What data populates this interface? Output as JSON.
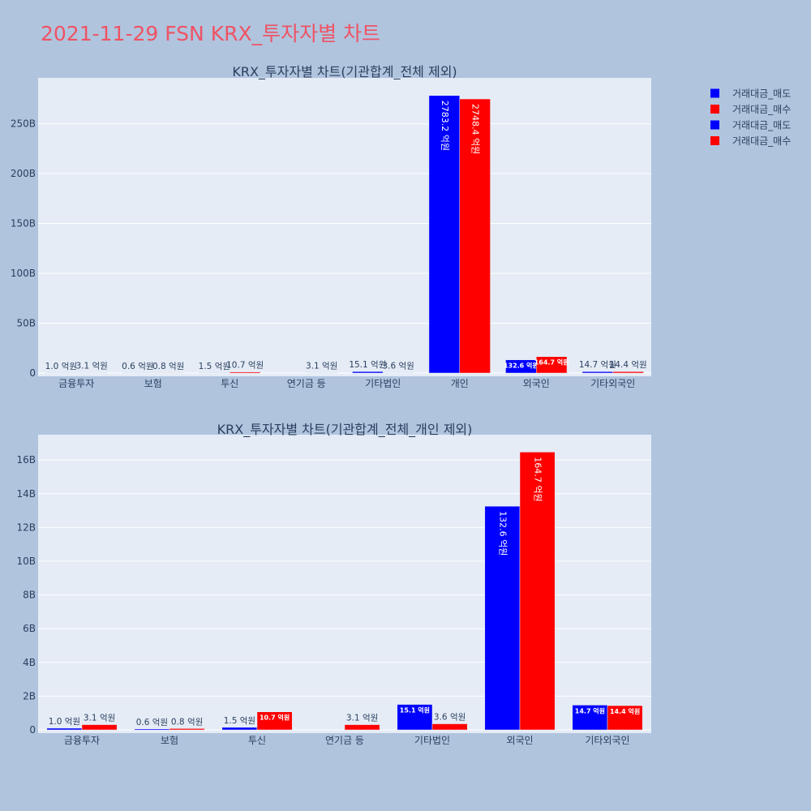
{
  "title": "2021-11-29 FSN KRX_투자자별 차트",
  "colors": {
    "sell": "#0000ff",
    "buy": "#ff0000",
    "plot_bg": "#e5ecf6",
    "page_bg": "#b0c4de",
    "title": "#ef5364"
  },
  "legend": [
    {
      "name": "거래대금_매도",
      "color": "#0000ff"
    },
    {
      "name": "거래대금_매수",
      "color": "#ff0000"
    },
    {
      "name": "거래대금_매도",
      "color": "#0000ff"
    },
    {
      "name": "거래대금_매수",
      "color": "#ff0000"
    }
  ],
  "chart_data": [
    {
      "type": "bar",
      "title": "KRX_투자자별 차트(기관합계_전체 제외)",
      "categories": [
        "금융투자",
        "보험",
        "투신",
        "연기금 등",
        "기타법인",
        "개인",
        "외국인",
        "기타외국인"
      ],
      "yticks": [
        "0",
        "50B",
        "100B",
        "150B",
        "200B",
        "250B"
      ],
      "ylim": [
        0,
        296
      ],
      "grid": true,
      "legend_position": "top-right",
      "series": [
        {
          "name": "거래대금_매도",
          "color": "#0000ff",
          "values": [
            0.1,
            0.06,
            0.15,
            0.0,
            1.51,
            278.32,
            13.26,
            1.47
          ],
          "labels": [
            "1.0 억원",
            "0.6 억원",
            "1.5 억원",
            "",
            "15.1 억원",
            "2783.2 억원",
            "132.6 억원",
            "14.7 억원"
          ]
        },
        {
          "name": "거래대금_매수",
          "color": "#ff0000",
          "values": [
            0.31,
            0.08,
            1.07,
            0.31,
            0.36,
            274.84,
            16.47,
            1.44
          ],
          "labels": [
            "3.1 억원",
            "0.8 억원",
            "10.7 억원",
            "3.1 억원",
            "3.6 억원",
            "2748.4 억원",
            "164.7 억원",
            "14.4 억원"
          ]
        }
      ]
    },
    {
      "type": "bar",
      "title": "KRX_투자자별 차트(기관합계_전체_개인 제외)",
      "categories": [
        "금융투자",
        "보험",
        "투신",
        "연기금 등",
        "기타법인",
        "외국인",
        "기타외국인"
      ],
      "yticks": [
        "0",
        "2B",
        "4B",
        "6B",
        "8B",
        "10B",
        "12B",
        "14B",
        "16B"
      ],
      "ylim": [
        0,
        17.5
      ],
      "grid": true,
      "series": [
        {
          "name": "거래대금_매도",
          "color": "#0000ff",
          "values": [
            0.1,
            0.06,
            0.15,
            0.0,
            1.51,
            13.26,
            1.47
          ],
          "labels": [
            "1.0 억원",
            "0.6 억원",
            "1.5 억원",
            "",
            "15.1 억원",
            "132.6 억원",
            "14.7 억원"
          ]
        },
        {
          "name": "거래대금_매수",
          "color": "#ff0000",
          "values": [
            0.31,
            0.08,
            1.07,
            0.31,
            0.36,
            16.47,
            1.44
          ],
          "labels": [
            "3.1 억원",
            "0.8 억원",
            "10.7 억원",
            "3.1 억원",
            "3.6 억원",
            "164.7 억원",
            "14.4 억원"
          ]
        }
      ]
    }
  ]
}
